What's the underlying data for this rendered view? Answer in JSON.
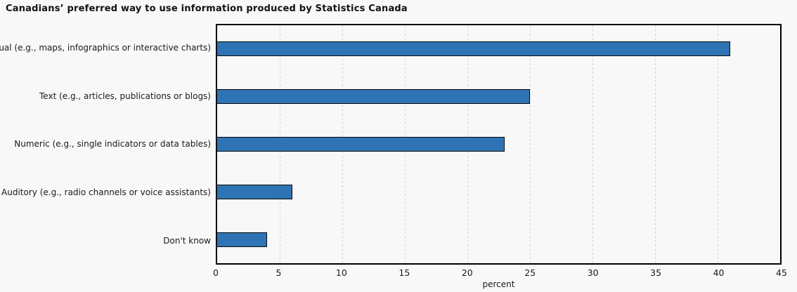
{
  "header": {
    "title": "Canadians’ preferred way to use information produced by Statistics Canada"
  },
  "chart_data": {
    "type": "bar",
    "orientation": "horizontal",
    "title": "Canadians’ preferred way to use information produced by Statistics Canada",
    "categories": [
      "Visual (e.g., maps, infographics or interactive charts)",
      "Text (e.g., articles, publications or blogs)",
      "Numeric (e.g., single indicators or data tables)",
      "Auditory (e.g., radio channels or voice assistants)",
      "Don't know"
    ],
    "values": [
      41,
      25,
      23,
      6,
      4
    ],
    "xlabel": "percent",
    "ylabel": "",
    "xlim": [
      0,
      45
    ],
    "xticks": [
      0,
      5,
      10,
      15,
      20,
      25,
      30,
      35,
      40,
      45
    ],
    "grid": "vertical-dashed",
    "legend": "none",
    "colors": {
      "bar_fill": "#2e74b5",
      "bar_border": "#0a0a0a",
      "plot_border": "#000000",
      "gridline": "#d2d2d2",
      "background": "#f8f8f8",
      "text": "#1a1a1a"
    }
  }
}
